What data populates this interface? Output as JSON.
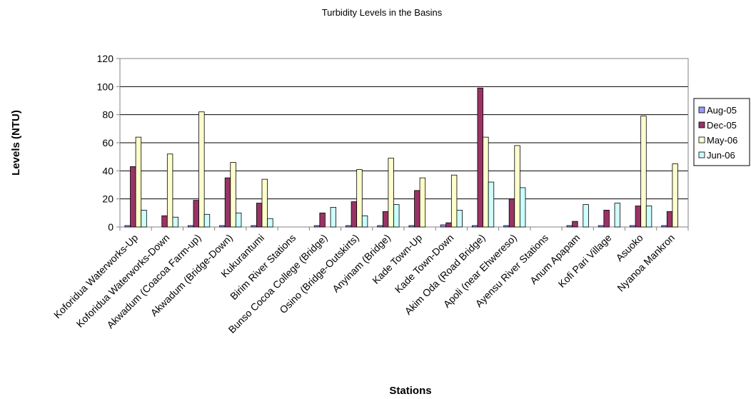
{
  "chart_data": {
    "type": "bar",
    "title": "Turbidity Levels in the Basins",
    "xlabel": "Stations",
    "ylabel": "Levels (NTU)",
    "ylim": [
      0,
      120
    ],
    "yticks": [
      0,
      20,
      40,
      60,
      80,
      100,
      120
    ],
    "grid": true,
    "legend_position": "right",
    "categories": [
      "Koforidua Waterworks-Up",
      "Koforidua Waterworks-Down",
      "Akwadum (Coacoa Farm-up)",
      "Akwadum (Bridge-Down)",
      "Kukurantumi",
      "Birim River Stations",
      "Bunso Cocoa College (Bridge)",
      "Osino (Bridge-Outskirts)",
      "Anyinam (Bridge)",
      "Kade Town-Up",
      "Kade Town-Down",
      "Akim Oda (Road Bridge)",
      "Apoli (near Ehwereso)",
      "Ayensu River Stations",
      "Anum Apapam",
      "Kofi Pari Village",
      "Asuoko",
      "Nyanoa Mankron"
    ],
    "series": [
      {
        "name": "Aug-05",
        "color": "#9999ff",
        "values": [
          1,
          0,
          1,
          1,
          1,
          null,
          1,
          1,
          1,
          1,
          1.5,
          1,
          1,
          null,
          1,
          1,
          1,
          1
        ]
      },
      {
        "name": "Dec-05",
        "color": "#993366",
        "values": [
          43,
          8,
          19,
          35,
          17,
          null,
          10,
          18,
          11,
          26,
          3,
          99,
          20,
          null,
          4,
          12,
          15,
          11
        ]
      },
      {
        "name": "May-06",
        "color": "#ffffcc",
        "values": [
          64,
          52,
          82,
          46,
          34,
          null,
          0,
          41,
          49,
          35,
          37,
          64,
          58,
          null,
          0,
          0,
          79,
          45
        ]
      },
      {
        "name": "Jun-06",
        "color": "#ccffff",
        "values": [
          12,
          7,
          9,
          10,
          6,
          null,
          14,
          8,
          16,
          0,
          12,
          32,
          28,
          null,
          16,
          17,
          15,
          0
        ]
      }
    ]
  }
}
